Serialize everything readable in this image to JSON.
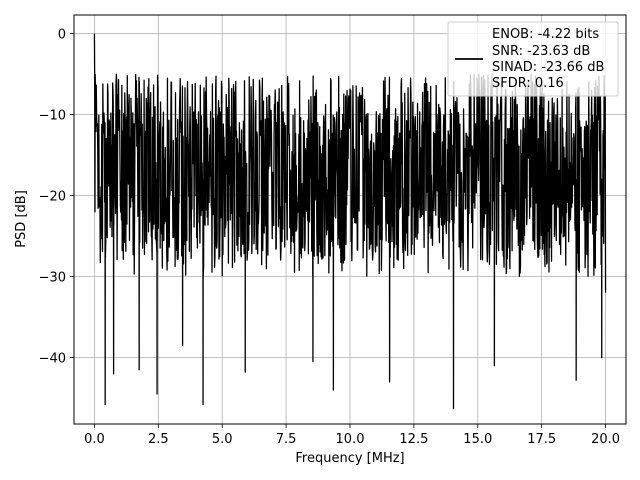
{
  "chart_data": {
    "type": "line",
    "title": "",
    "xlabel": "Frequency [MHz]",
    "ylabel": "PSD [dB]",
    "xlim": [
      -0.8,
      20.8
    ],
    "ylim": [
      -48.2,
      2.3
    ],
    "xticks": [
      0.0,
      2.5,
      5.0,
      7.5,
      10.0,
      12.5,
      15.0,
      17.5,
      20.0
    ],
    "xtick_labels": [
      "0.0",
      "2.5",
      "5.0",
      "7.5",
      "10.0",
      "12.5",
      "15.0",
      "17.5",
      "20.0"
    ],
    "yticks": [
      0,
      -10,
      -20,
      -30,
      -40
    ],
    "ytick_labels": [
      "0",
      "−10",
      "−20",
      "−30",
      "−40"
    ],
    "grid": true,
    "legend_position": "top-right",
    "legend": [
      "ENOB: -4.22 bits",
      "SNR: -23.63 dB",
      "SINAD: -23.66 dB",
      "SFDR: 0.16"
    ],
    "series": [
      {
        "color": "#000000",
        "x_range": [
          0.0,
          20.0
        ],
        "peak": {
          "x": 0.0,
          "y": 0.0
        },
        "noise_floor_y": -18,
        "upper_envelope_y": -5,
        "lower_envelope_y": -30,
        "deep_nulls": [
          {
            "x": 0.42,
            "y": -45.8
          },
          {
            "x": 0.75,
            "y": -42.0
          },
          {
            "x": 1.75,
            "y": -41.5
          },
          {
            "x": 2.45,
            "y": -44.5
          },
          {
            "x": 3.45,
            "y": -38.5
          },
          {
            "x": 4.25,
            "y": -45.8
          },
          {
            "x": 5.9,
            "y": -41.8
          },
          {
            "x": 8.55,
            "y": -40.5
          },
          {
            "x": 9.35,
            "y": -44.0
          },
          {
            "x": 11.55,
            "y": -43.0
          },
          {
            "x": 14.05,
            "y": -46.3
          },
          {
            "x": 15.65,
            "y": -41.0
          },
          {
            "x": 18.85,
            "y": -42.8
          },
          {
            "x": 19.85,
            "y": -40.0
          }
        ]
      }
    ]
  }
}
